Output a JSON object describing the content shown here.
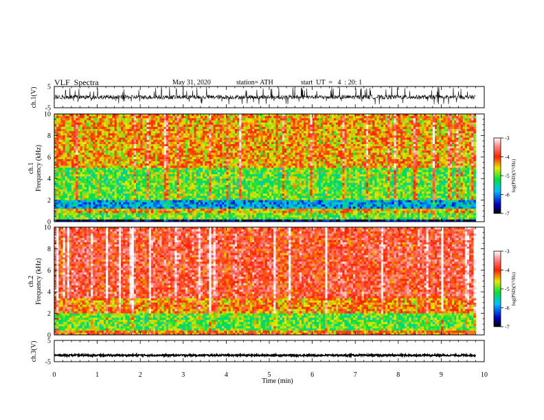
{
  "header": {
    "title": "VLF  Spectra",
    "date": "May 31, 2020",
    "station": "station= ATH",
    "start": "start  UT  =   4  : 20: 1"
  },
  "chart_data": [
    {
      "type": "line",
      "panel": "ch1-waveform",
      "ylabel": "ch.1(V)",
      "ylim": [
        -5,
        5
      ],
      "yticks": [
        "5",
        "-5"
      ],
      "xlim": [
        0,
        10
      ],
      "series": [
        {
          "values_summary": {
            "baseline": 0.0,
            "noise_amplitude": 1.0,
            "spike_max": 5.0,
            "spike_min": -3.5
          },
          "x_end": 9.8,
          "color": "#000000"
        }
      ]
    },
    {
      "type": "heatmap",
      "panel": "ch1-spectrogram",
      "ylabel": "ch.1\nFrequency  (kHz)",
      "ylim": [
        0,
        10
      ],
      "yticks": [
        "0",
        "2",
        "4",
        "6",
        "8",
        "10"
      ],
      "xlim": [
        0,
        9.8
      ],
      "colorbar": {
        "label": "log(PSD)(V²/Hz)",
        "range": [
          -7,
          -3
        ],
        "ticks": [
          "-3",
          "-4",
          "-5",
          "-6",
          "-7"
        ]
      },
      "bands_khz_log_psd": [
        {
          "from": 0,
          "to": 0.3,
          "level": -6.6
        },
        {
          "from": 0.3,
          "to": 0.7,
          "level": -5.0
        },
        {
          "from": 0.7,
          "to": 1.1,
          "level": -4.5
        },
        {
          "from": 1.1,
          "to": 2.0,
          "level": -5.9
        },
        {
          "from": 2.0,
          "to": 5.0,
          "level": -5.0
        },
        {
          "from": 5.0,
          "to": 10.0,
          "level": -4.4
        }
      ],
      "gaps_khz": [
        [
          0.0,
          0.05
        ]
      ]
    },
    {
      "type": "heatmap",
      "panel": "ch2-spectrogram",
      "ylabel": "ch.2\nFrequency  (kHz)",
      "ylim": [
        0,
        10
      ],
      "yticks": [
        "0",
        "2",
        "4",
        "6",
        "8",
        "10"
      ],
      "xlim": [
        0,
        9.8
      ],
      "colorbar": {
        "label": "log(PSD)(V²/Hz)",
        "range": [
          -7,
          -3
        ],
        "ticks": [
          "-3",
          "-4",
          "-5",
          "-6",
          "-7"
        ]
      },
      "bands_khz_log_psd": [
        {
          "from": 0,
          "to": 0.5,
          "level": -4.2
        },
        {
          "from": 0.5,
          "to": 2.0,
          "level": -5.0
        },
        {
          "from": 2.0,
          "to": 3.5,
          "level": -4.3
        },
        {
          "from": 3.5,
          "to": 10.0,
          "level": -3.8
        }
      ]
    },
    {
      "type": "line",
      "panel": "ch3-waveform",
      "ylabel": "ch.3(V)",
      "ylim": [
        -5,
        5
      ],
      "yticks": [
        "5",
        "-5"
      ],
      "xlabel": "Time  (min)",
      "xlim": [
        0,
        10
      ],
      "xticks": [
        "0",
        "1",
        "2",
        "3",
        "4",
        "5",
        "6",
        "7",
        "8",
        "9",
        "10"
      ],
      "series": [
        {
          "values_summary": {
            "baseline": -2.0,
            "noise_amplitude": 0.4
          },
          "x_end": 9.8,
          "color": "#000000"
        }
      ]
    }
  ]
}
